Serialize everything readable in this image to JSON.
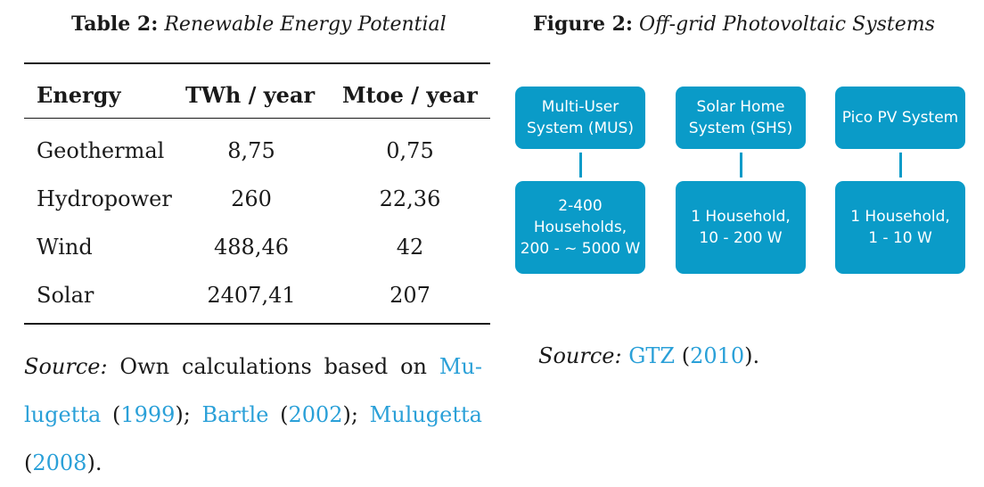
{
  "table": {
    "caption_num": "Table 2:",
    "caption_title": "Renewable Energy Potential",
    "headers": [
      "Energy",
      "TWh / year",
      "Mtoe / year"
    ],
    "rows": [
      [
        "Geothermal",
        "8,75",
        "0,75"
      ],
      [
        "Hydropower",
        "260",
        "22,36"
      ],
      [
        "Wind",
        "488,46",
        "42"
      ],
      [
        "Solar",
        "2407,41",
        "207"
      ]
    ],
    "source": {
      "label": "Source:",
      "text1": "Own calculations based on",
      "link1a": "Mu-",
      "link1b": "lugetta",
      "year1": "1999",
      "link2": "Bartle",
      "year2": "2002",
      "link3": "Mulugetta",
      "year3": "2008"
    }
  },
  "figure": {
    "caption_num": "Figure 2:",
    "caption_title": "Off-grid Photovoltaic Systems",
    "top_boxes": [
      [
        "Multi-User",
        "System (MUS)"
      ],
      [
        "Solar Home",
        "System (SHS)"
      ],
      [
        "Pico PV System"
      ]
    ],
    "bottom_boxes": [
      [
        "2-400",
        "Households,",
        "200 - ~ 5000 W"
      ],
      [
        "1 Household,",
        "10 - 200 W"
      ],
      [
        "1 Household,",
        "1 - 10 W"
      ]
    ],
    "source": {
      "label": "Source:",
      "link": "GTZ",
      "year": "2010"
    }
  },
  "colors": {
    "box": "#0a9bc8",
    "link": "#2aa0d8"
  }
}
